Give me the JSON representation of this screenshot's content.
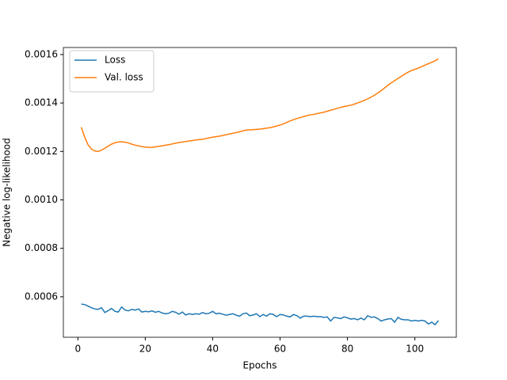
{
  "chart_data": {
    "type": "line",
    "xlabel": "Epochs",
    "ylabel": "Negative log-likelihood",
    "x": [
      1,
      2,
      3,
      4,
      5,
      6,
      7,
      8,
      9,
      10,
      11,
      12,
      13,
      14,
      15,
      16,
      17,
      18,
      19,
      20,
      21,
      22,
      23,
      24,
      25,
      26,
      27,
      28,
      29,
      30,
      31,
      32,
      33,
      34,
      35,
      36,
      37,
      38,
      39,
      40,
      41,
      42,
      43,
      44,
      45,
      46,
      47,
      48,
      49,
      50,
      51,
      52,
      53,
      54,
      55,
      56,
      57,
      58,
      59,
      60,
      61,
      62,
      63,
      64,
      65,
      66,
      67,
      68,
      69,
      70,
      71,
      72,
      73,
      74,
      75,
      76,
      77,
      78,
      79,
      80,
      81,
      82,
      83,
      84,
      85,
      86,
      87,
      88,
      89,
      90,
      91,
      92,
      93,
      94,
      95,
      96,
      97,
      98,
      99,
      100,
      101,
      102,
      103,
      104,
      105,
      106,
      107
    ],
    "series": [
      {
        "name": "Loss",
        "color": "#1f77b4",
        "values": [
          0.00057,
          0.000568,
          0.000562,
          0.000555,
          0.00055,
          0.000548,
          0.000555,
          0.000535,
          0.000543,
          0.000552,
          0.00054,
          0.000537,
          0.000558,
          0.000545,
          0.000542,
          0.000548,
          0.000545,
          0.00055,
          0.000537,
          0.00054,
          0.000538,
          0.000542,
          0.000536,
          0.00054,
          0.000533,
          0.00053,
          0.000532,
          0.00054,
          0.000536,
          0.000528,
          0.000537,
          0.000525,
          0.00053,
          0.000527,
          0.00053,
          0.000528,
          0.000535,
          0.00053,
          0.000532,
          0.00054,
          0.00053,
          0.000532,
          0.000528,
          0.000524,
          0.000527,
          0.00053,
          0.000524,
          0.00052,
          0.00053,
          0.000533,
          0.000522,
          0.000525,
          0.00053,
          0.000518,
          0.000527,
          0.00052,
          0.00053,
          0.000527,
          0.000518,
          0.000527,
          0.000525,
          0.00052,
          0.000517,
          0.000527,
          0.000522,
          0.000512,
          0.00052,
          0.00052,
          0.000518,
          0.00052,
          0.000518,
          0.000518,
          0.000515,
          0.000517,
          0.0005,
          0.000515,
          0.000513,
          0.00051,
          0.000517,
          0.000513,
          0.000508,
          0.00051,
          0.000505,
          0.000512,
          0.000505,
          0.000522,
          0.000515,
          0.000517,
          0.00051,
          0.0005,
          0.000505,
          0.000508,
          0.00051,
          0.000495,
          0.000515,
          0.000507,
          0.000505,
          0.000505,
          0.0005,
          0.000503,
          0.0005,
          0.000503,
          0.0005,
          0.000488,
          0.000495,
          0.000485,
          0.000502
        ]
      },
      {
        "name": "Val. loss",
        "color": "#ff7f0e",
        "values": [
          0.0013,
          0.00126,
          0.001228,
          0.00121,
          0.001202,
          0.0012,
          0.001205,
          0.001213,
          0.001222,
          0.00123,
          0.001236,
          0.001239,
          0.00124,
          0.001238,
          0.001235,
          0.00123,
          0.001226,
          0.001223,
          0.00122,
          0.001218,
          0.001217,
          0.001217,
          0.001219,
          0.001221,
          0.001223,
          0.001226,
          0.001228,
          0.001231,
          0.001234,
          0.001237,
          0.001239,
          0.001241,
          0.001243,
          0.001245,
          0.001247,
          0.001249,
          0.00125,
          0.001253,
          0.001256,
          0.001259,
          0.001261,
          0.001263,
          0.001266,
          0.001269,
          0.001272,
          0.001275,
          0.001278,
          0.001281,
          0.001285,
          0.001288,
          0.001289,
          0.00129,
          0.001291,
          0.001292,
          0.001294,
          0.001296,
          0.001298,
          0.001301,
          0.001305,
          0.001309,
          0.001314,
          0.00132,
          0.001326,
          0.001331,
          0.001336,
          0.00134,
          0.001344,
          0.001348,
          0.001351,
          0.001353,
          0.001356,
          0.001359,
          0.001362,
          0.001366,
          0.00137,
          0.001374,
          0.001378,
          0.001382,
          0.001385,
          0.001388,
          0.001391,
          0.001395,
          0.0014,
          0.001405,
          0.001411,
          0.001417,
          0.001424,
          0.001432,
          0.001441,
          0.001451,
          0.001462,
          0.001473,
          0.001483,
          0.001492,
          0.001501,
          0.00151,
          0.001519,
          0.001527,
          0.001534,
          0.001539,
          0.001544,
          0.00155,
          0.001556,
          0.001562,
          0.001568,
          0.001574,
          0.001582
        ]
      }
    ],
    "xlim": [
      -4.3,
      112.3
    ],
    "xticks": [
      0,
      20,
      40,
      60,
      80,
      100
    ],
    "ylim": [
      0.000433,
      0.001629
    ],
    "yticks": [
      0.0006,
      0.0008,
      {
        "value": 0.001,
        "label": "0.0010"
      },
      0.0012,
      0.0014,
      0.0016
    ],
    "grid": false,
    "legend": "upper left"
  }
}
